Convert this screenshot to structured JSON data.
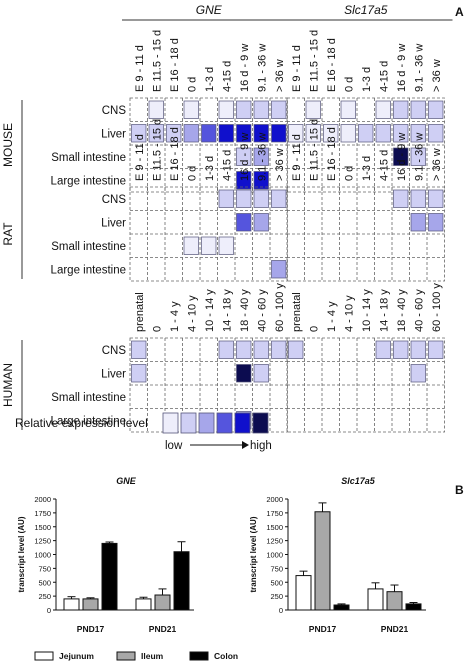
{
  "panel_a_label": "A",
  "panel_b_label": "B",
  "gene_titles": [
    "GNE",
    "Slc17a5"
  ],
  "levels": [
    "#ffffff",
    "#eeeefb",
    "#cfcff4",
    "#a6a6ea",
    "#5555dd",
    "#1010cc",
    "#0c0c50"
  ],
  "heatmap": {
    "species": [
      {
        "name": "MOUSE",
        "columns": [
          "E 9 - 11 d",
          "E 11.5 - 15 d",
          "E 16 - 18 d",
          "0 d",
          "1-3 d",
          "4-15 d",
          "16 d - 9 w",
          "9.1 - 36 w",
          "> 36 w"
        ],
        "tissues": [
          "CNS",
          "Liver",
          "Small intestine",
          "Large intestine"
        ],
        "values": [
          [
            [
              0,
              1,
              0,
              1,
              0,
              1,
              2,
              2,
              2
            ],
            [
              2,
              2,
              2,
              3,
              4,
              5,
              5,
              5,
              5
            ],
            [
              0,
              0,
              0,
              0,
              0,
              0,
              2,
              3,
              0
            ],
            [
              0,
              0,
              0,
              0,
              0,
              0,
              5,
              5,
              0
            ]
          ],
          [
            [
              0,
              1,
              0,
              1,
              0,
              1,
              2,
              2,
              2
            ],
            [
              1,
              1,
              1,
              1,
              2,
              2,
              2,
              2,
              2
            ],
            [
              0,
              0,
              0,
              0,
              0,
              0,
              6,
              2,
              0
            ],
            [
              0,
              0,
              0,
              0,
              0,
              0,
              0,
              0,
              0
            ]
          ]
        ]
      },
      {
        "name": "RAT",
        "columns": [
          "E 9 - 11 d",
          "E 11.5 - 15 d",
          "E 16 - 18 d",
          "0 d",
          "1-3 d",
          "4-15 d",
          "16 d - 9 w",
          "9.1 - 36 w",
          "> 36 w"
        ],
        "tissues": [
          "CNS",
          "Liver",
          "Small intestine",
          "Large intestine"
        ],
        "values": [
          [
            [
              0,
              0,
              0,
              0,
              0,
              2,
              2,
              2,
              2
            ],
            [
              0,
              0,
              0,
              0,
              0,
              0,
              4,
              3,
              0
            ],
            [
              0,
              0,
              0,
              1,
              1,
              1,
              0,
              0,
              0
            ],
            [
              0,
              0,
              0,
              0,
              0,
              0,
              0,
              0,
              3
            ]
          ],
          [
            [
              0,
              0,
              0,
              0,
              0,
              0,
              2,
              2,
              2
            ],
            [
              0,
              0,
              0,
              0,
              0,
              0,
              0,
              3,
              3
            ],
            [
              0,
              0,
              0,
              0,
              0,
              0,
              0,
              0,
              0
            ],
            [
              0,
              0,
              0,
              0,
              0,
              0,
              0,
              0,
              0
            ]
          ]
        ]
      },
      {
        "name": "HUMAN",
        "columns": [
          "prenatal",
          "0",
          "1 - 4 y",
          "4 - 10 y",
          "10 - 14 y",
          "14 - 18 y",
          "18 - 40 y",
          "40 - 60 y",
          "60 - 100 y"
        ],
        "tissues": [
          "CNS",
          "Liver",
          "Small intestine",
          "Large intestine"
        ],
        "values": [
          [
            [
              2,
              0,
              0,
              0,
              0,
              2,
              2,
              2,
              2
            ],
            [
              2,
              0,
              0,
              0,
              0,
              0,
              6,
              2,
              0
            ],
            [
              0,
              0,
              0,
              0,
              0,
              0,
              0,
              0,
              0
            ],
            [
              0,
              0,
              0,
              0,
              0,
              0,
              3,
              0,
              0
            ]
          ],
          [
            [
              2,
              0,
              0,
              0,
              0,
              2,
              2,
              2,
              2
            ],
            [
              0,
              0,
              0,
              0,
              0,
              0,
              0,
              2,
              0
            ],
            [
              0,
              0,
              0,
              0,
              0,
              0,
              0,
              0,
              0
            ],
            [
              0,
              0,
              0,
              0,
              0,
              0,
              0,
              0,
              0
            ]
          ]
        ]
      }
    ],
    "legend": {
      "label": "Relative expression level",
      "levels": [
        1,
        2,
        3,
        4,
        5,
        6
      ],
      "low": "low",
      "high": "high"
    }
  },
  "chart_data": [
    {
      "type": "bar",
      "title": "GNE",
      "ylabel": "transcript level (AU)",
      "ylim": [
        0,
        2000
      ],
      "yticks": [
        0,
        250,
        500,
        750,
        1000,
        1250,
        1500,
        1750,
        2000
      ],
      "categories": [
        "PND17",
        "PND21"
      ],
      "series": [
        {
          "name": "Jejunum",
          "color": "#ffffff",
          "values": [
            200,
            200
          ],
          "errors": [
            40,
            30
          ]
        },
        {
          "name": "Ileum",
          "color": "#a8a8a8",
          "values": [
            200,
            270
          ],
          "errors": [
            20,
            110
          ]
        },
        {
          "name": "Colon",
          "color": "#000000",
          "values": [
            1200,
            1050
          ],
          "errors": [
            25,
            180
          ]
        }
      ]
    },
    {
      "type": "bar",
      "title": "Slc17a5",
      "ylabel": "transcript level (AU)",
      "ylim": [
        0,
        2000
      ],
      "yticks": [
        0,
        250,
        500,
        750,
        1000,
        1250,
        1500,
        1750,
        2000
      ],
      "categories": [
        "PND17",
        "PND21"
      ],
      "series": [
        {
          "name": "Jejunum",
          "color": "#ffffff",
          "values": [
            620,
            380
          ],
          "errors": [
            80,
            110
          ]
        },
        {
          "name": "Ileum",
          "color": "#a8a8a8",
          "values": [
            1770,
            330
          ],
          "errors": [
            160,
            120
          ]
        },
        {
          "name": "Colon",
          "color": "#000000",
          "values": [
            90,
            110
          ],
          "errors": [
            20,
            25
          ]
        }
      ]
    }
  ],
  "bar_legend": [
    "Jejunum",
    "Ileum",
    "Colon"
  ]
}
